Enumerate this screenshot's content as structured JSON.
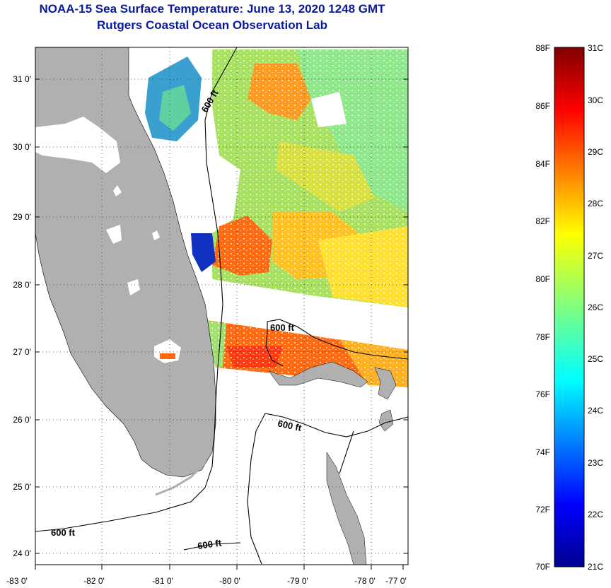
{
  "title_line1": "NOAA-15 Sea Surface Temperature:  June 13, 2020 1248 GMT",
  "title_line2": "Rutgers Coastal Ocean Observation Lab",
  "lat_labels": [
    "31 0'",
    "30 0'",
    "29 0'",
    "28 0'",
    "27 0'",
    "26 0'",
    "25 0'",
    "24 0'"
  ],
  "lon_labels": [
    "-83 0'",
    "-82 0'",
    "-81 0'",
    "-80 0'",
    "-79 0'",
    "-78 0'",
    "-77 0'"
  ],
  "contour_labels": [
    "600 ft",
    "600 ft",
    "600 ft",
    "600 ft",
    "600 ft"
  ],
  "colorbar": {
    "f_labels": [
      "88F",
      "86F",
      "84F",
      "82F",
      "80F",
      "78F",
      "76F",
      "74F",
      "72F",
      "70F"
    ],
    "c_labels": [
      "31C",
      "30C",
      "29C",
      "28C",
      "27C",
      "26C",
      "25C",
      "24C",
      "23C",
      "22C",
      "21C"
    ]
  },
  "colors": {
    "title": "#0a1a9a",
    "land": "#b0b0b0",
    "no_data": "#ffffff"
  }
}
